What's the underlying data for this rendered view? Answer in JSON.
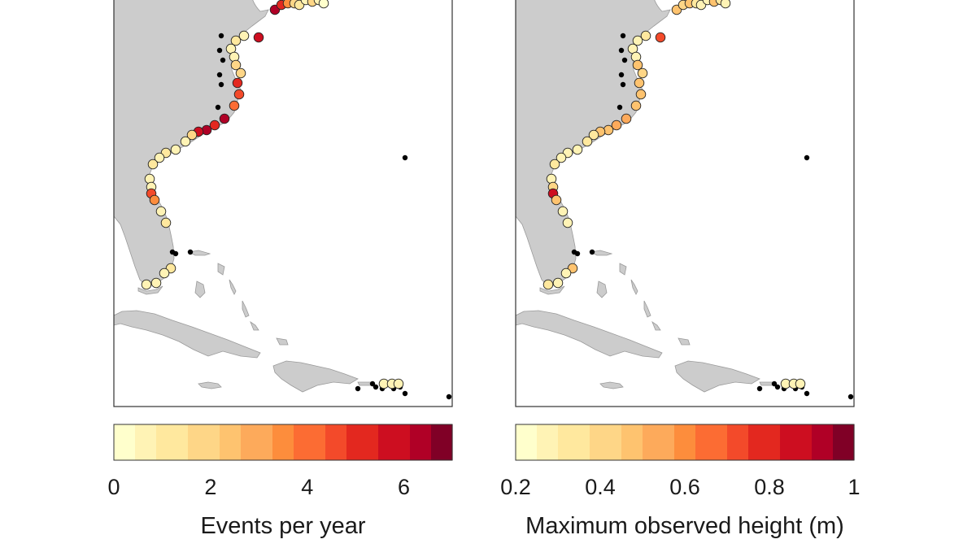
{
  "colorbar_colors": [
    "#ffffcc",
    "#fff3b5",
    "#ffe89e",
    "#fed687",
    "#fec36f",
    "#fdaa5b",
    "#fd8d3c",
    "#fc6c33",
    "#f34a2a",
    "#e3281f",
    "#cd0e20",
    "#b00026",
    "#800026"
  ],
  "land_color": "#cccccc",
  "no_data_color": "#000000",
  "panels": [
    {
      "id": "left",
      "colorbar_title": "Events per year",
      "colorbar_range": [
        0,
        7
      ],
      "colorbar_ticks": [
        "0",
        "2",
        "4",
        "6"
      ],
      "colorbar_tick_values": [
        0,
        2,
        4,
        6
      ],
      "site_values": [
        6.5,
        5.5,
        3.5,
        2,
        1,
        0.5,
        1.5,
        0.5,
        0.2,
        5.8,
        0.5,
        1,
        0.3,
        0.5,
        1.5,
        2,
        5,
        4.5,
        3.8,
        6.5,
        5.5,
        6.2,
        5.8,
        1.5,
        0.8,
        0.5,
        1,
        0.5,
        1,
        0.3,
        0.8,
        4.8,
        3.5,
        0.5,
        1,
        1,
        0.5,
        0.3,
        0.5,
        0.8,
        0.5,
        0.3
      ]
    },
    {
      "id": "right",
      "colorbar_title": "Maximum observed height (m)",
      "colorbar_range": [
        0.2,
        1.0
      ],
      "colorbar_ticks": [
        "0.2",
        "0.4",
        "0.6",
        "0.8",
        "1"
      ],
      "colorbar_tick_values": [
        0.2,
        0.4,
        0.6,
        0.8,
        1.0
      ],
      "site_values": [
        0.45,
        0.4,
        0.5,
        0.35,
        0.3,
        0.3,
        0.45,
        0.35,
        0.3,
        0.75,
        0.35,
        0.3,
        0.3,
        0.3,
        0.45,
        0.4,
        0.5,
        0.45,
        0.5,
        0.55,
        0.55,
        0.5,
        0.45,
        0.35,
        0.35,
        0.3,
        0.3,
        0.3,
        0.35,
        0.3,
        0.4,
        0.9,
        0.5,
        0.3,
        0.3,
        0.45,
        0.3,
        0.3,
        0.35,
        0.3,
        0.3,
        0.3
      ]
    }
  ]
}
